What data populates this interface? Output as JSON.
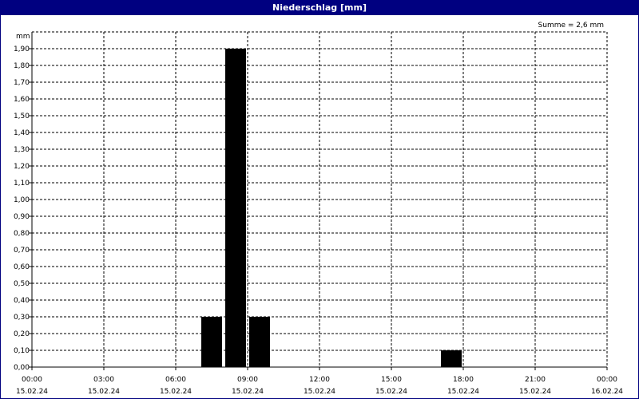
{
  "window": {
    "title": "Niederschlag [mm]"
  },
  "summary": "Summe = 2,6 mm",
  "colors": {
    "titlebar": "#000080",
    "bar": "#000000",
    "grid": "#000000",
    "background": "#ffffff"
  },
  "chart_data": {
    "type": "bar",
    "title": "Niederschlag [mm]",
    "ylabel": "mm",
    "xlabel": "",
    "ylim": [
      0,
      2.0
    ],
    "grid": true,
    "y_ticks": [
      "0,00",
      "0,10",
      "0,20",
      "0,30",
      "0,40",
      "0,50",
      "0,60",
      "0,70",
      "0,80",
      "0,90",
      "1,00",
      "1,10",
      "1,20",
      "1,30",
      "1,40",
      "1,50",
      "1,60",
      "1,70",
      "1,80",
      "1,90"
    ],
    "x_ticks": [
      {
        "time": "00:00",
        "date": "15.02.24"
      },
      {
        "time": "03:00",
        "date": "15.02.24"
      },
      {
        "time": "06:00",
        "date": "15.02.24"
      },
      {
        "time": "09:00",
        "date": "15.02.24"
      },
      {
        "time": "12:00",
        "date": "15.02.24"
      },
      {
        "time": "15:00",
        "date": "15.02.24"
      },
      {
        "time": "18:00",
        "date": "15.02.24"
      },
      {
        "time": "21:00",
        "date": "15.02.24"
      },
      {
        "time": "00:00",
        "date": "16.02.24"
      }
    ],
    "bars": [
      {
        "time": "15.02.24 07:00-08:00",
        "value": 0.3
      },
      {
        "time": "15.02.24 08:00-09:00",
        "value": 1.9
      },
      {
        "time": "15.02.24 09:00-10:00",
        "value": 0.3
      },
      {
        "time": "15.02.24 17:00-18:00",
        "value": 0.1
      }
    ]
  }
}
